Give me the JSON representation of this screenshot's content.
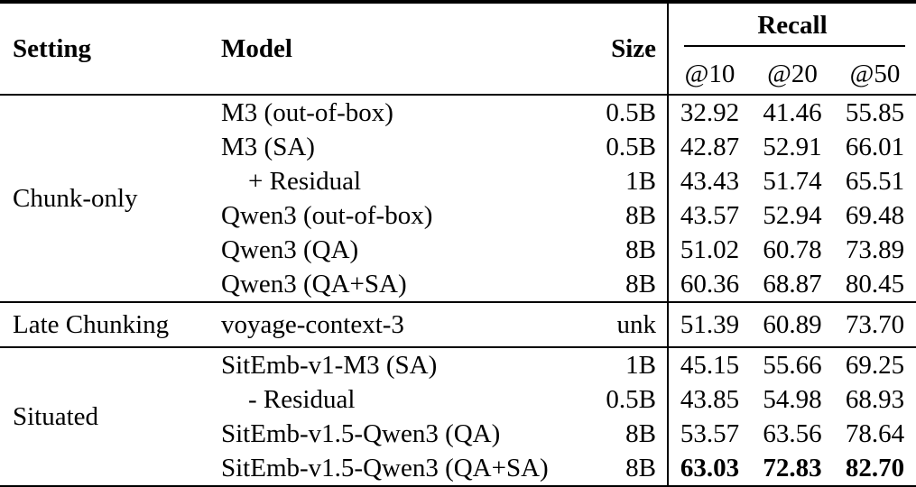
{
  "table": {
    "headers": {
      "setting": "Setting",
      "model": "Model",
      "size": "Size",
      "recall": "Recall",
      "at10": "@10",
      "at20": "@20",
      "at50": "@50"
    },
    "sections": [
      {
        "setting": "Chunk-only",
        "rows": [
          {
            "model": "M3 (out-of-box)",
            "size": "0.5B",
            "r10": "32.92",
            "r20": "41.46",
            "r50": "55.85"
          },
          {
            "model": "M3 (SA)",
            "size": "0.5B",
            "r10": "42.87",
            "r20": "52.91",
            "r50": "66.01"
          },
          {
            "model": "+ Residual",
            "size": "1B",
            "r10": "43.43",
            "r20": "51.74",
            "r50": "65.51"
          },
          {
            "model": "Qwen3 (out-of-box)",
            "size": "8B",
            "r10": "43.57",
            "r20": "52.94",
            "r50": "69.48"
          },
          {
            "model": "Qwen3 (QA)",
            "size": "8B",
            "r10": "51.02",
            "r20": "60.78",
            "r50": "73.89"
          },
          {
            "model": "Qwen3 (QA+SA)",
            "size": "8B",
            "r10": "60.36",
            "r20": "68.87",
            "r50": "80.45"
          }
        ]
      },
      {
        "setting": "Late Chunking",
        "rows": [
          {
            "model": "voyage-context-3",
            "size": "unk",
            "r10": "51.39",
            "r20": "60.89",
            "r50": "73.70"
          }
        ]
      },
      {
        "setting": "Situated",
        "rows": [
          {
            "model": "SitEmb-v1-M3 (SA)",
            "size": "1B",
            "r10": "45.15",
            "r20": "55.66",
            "r50": "69.25"
          },
          {
            "model": "- Residual",
            "size": "0.5B",
            "r10": "43.85",
            "r20": "54.98",
            "r50": "68.93"
          },
          {
            "model": "SitEmb-v1.5-Qwen3 (QA)",
            "size": "8B",
            "r10": "53.57",
            "r20": "63.56",
            "r50": "78.64"
          },
          {
            "model": "SitEmb-v1.5-Qwen3 (QA+SA)",
            "size": "8B",
            "r10": "63.03",
            "r20": "72.83",
            "r50": "82.70"
          }
        ]
      }
    ]
  }
}
